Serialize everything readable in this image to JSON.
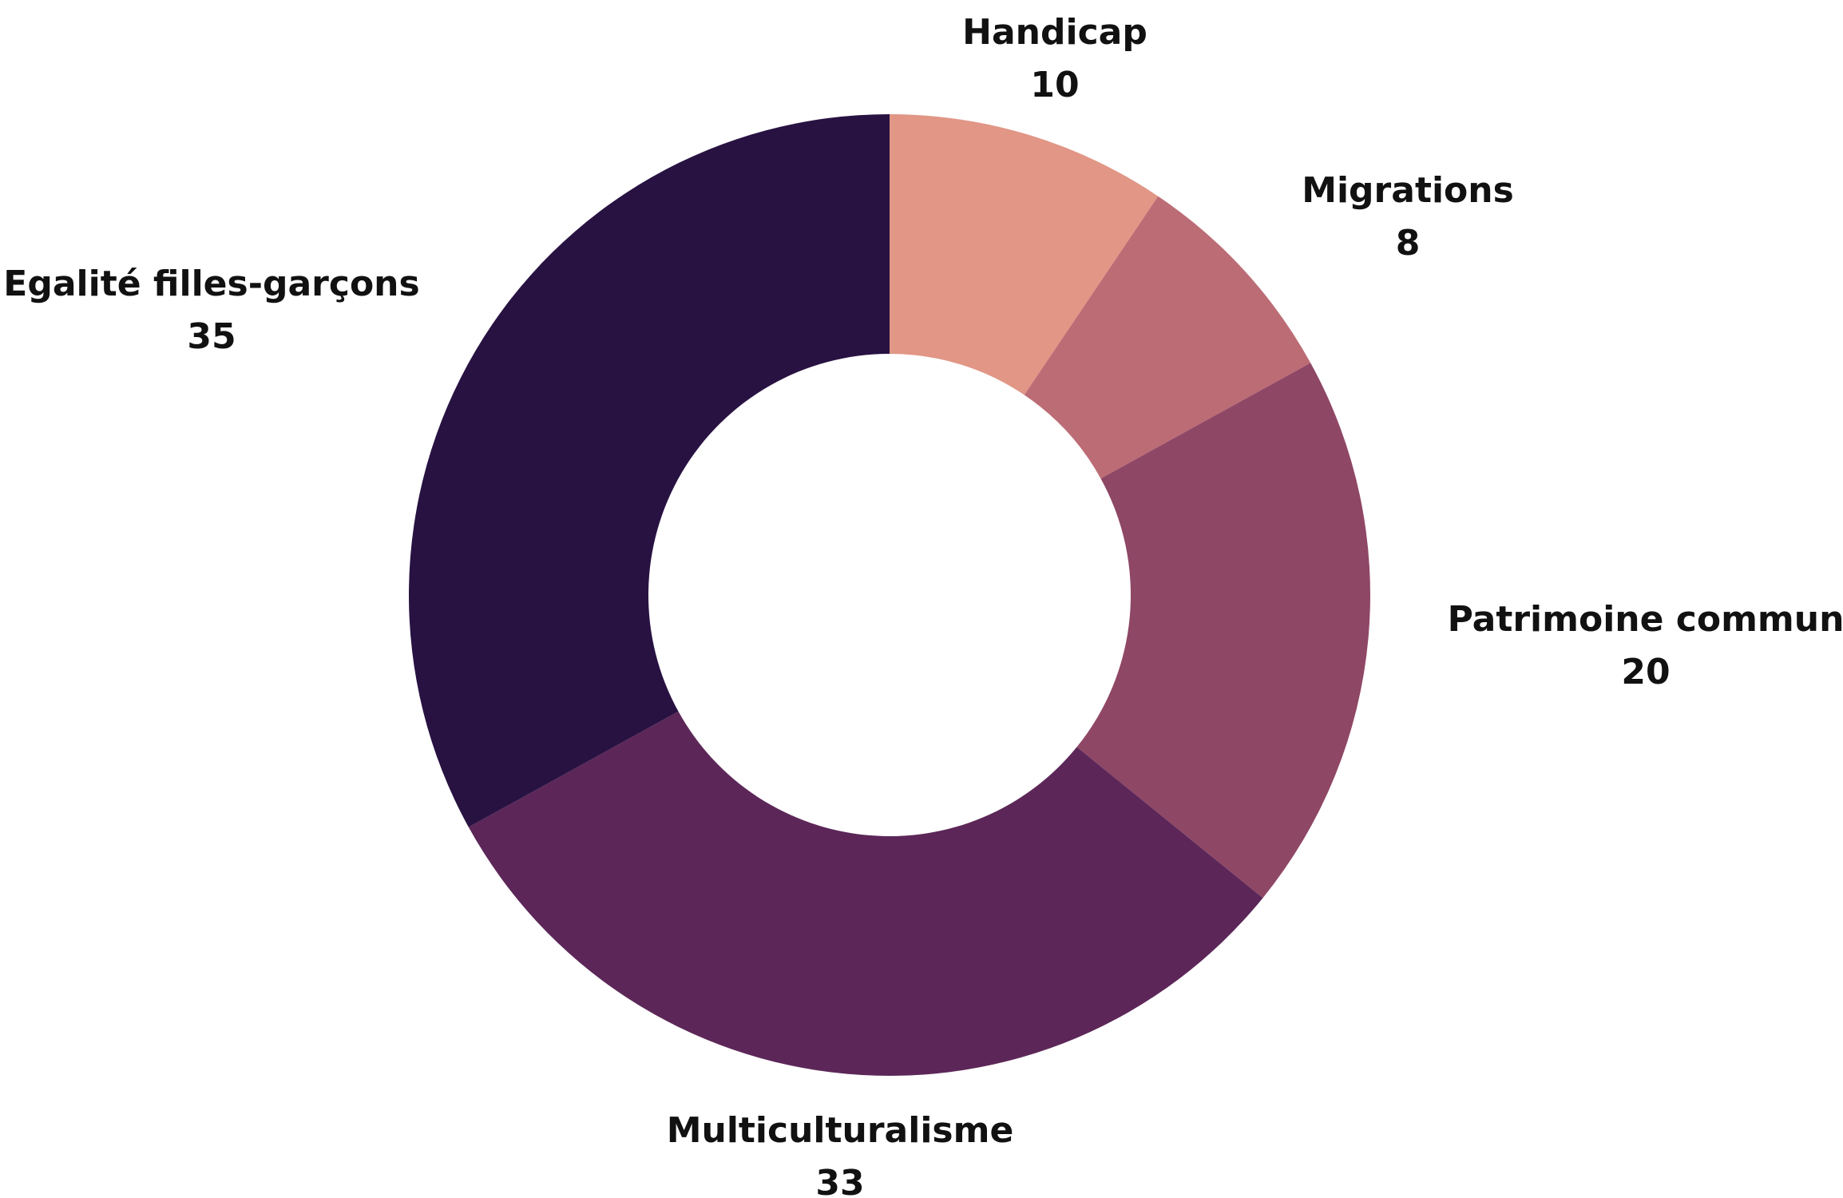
{
  "chart_data": {
    "type": "pie",
    "donut": true,
    "title": "",
    "slices": [
      {
        "name": "Handicap",
        "value": 10,
        "color": "#E19686"
      },
      {
        "name": "Migrations",
        "value": 8,
        "color": "#BC6C75"
      },
      {
        "name": "Patrimoine commun",
        "value": 20,
        "color": "#8F4766"
      },
      {
        "name": "Multiculturalisme",
        "value": 33,
        "color": "#5C2758"
      },
      {
        "name": "Egalité filles-garçons",
        "value": 35,
        "color": "#281242"
      }
    ],
    "start_angle": "12 o'clock",
    "direction": "clockwise",
    "legend": "none",
    "data_labels": "outside, name above value"
  }
}
